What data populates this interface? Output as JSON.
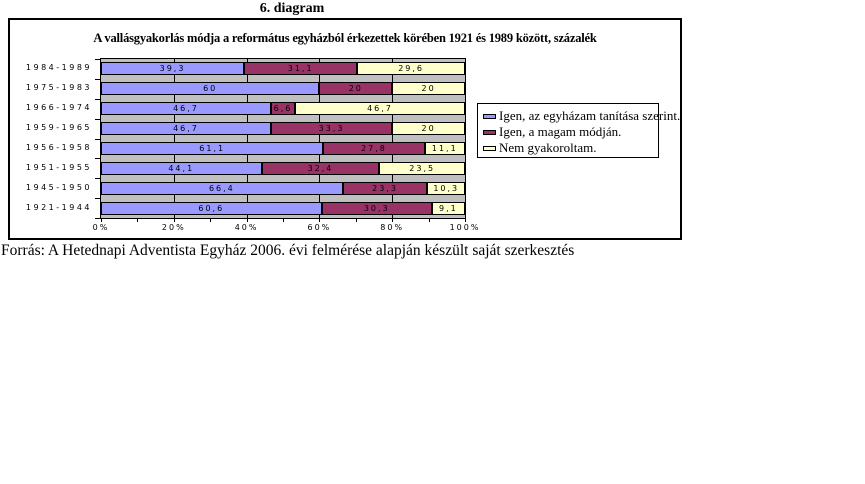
{
  "page": {
    "heading": "6. diagram",
    "source_note": "Forrás: A Hetednapi Adventista Egyház 2006. évi felmérése alapján készült saját szerkesztés"
  },
  "chart_data": {
    "type": "bar",
    "orientation": "horizontal",
    "stacked": true,
    "title": "A vallásgyakorlás módja a református egyházból érkezettek körében 1921 és 1989 között, százalék",
    "categories": [
      "1984-1989",
      "1975-1983",
      "1966-1974",
      "1959-1965",
      "1956-1958",
      "1951-1955",
      "1945-1950",
      "1921-1944"
    ],
    "series": [
      {
        "name": "Igen, az egyházam tanítása szerint.",
        "color": "#9999FF",
        "values": [
          39.3,
          60,
          46.7,
          46.7,
          61.1,
          44.1,
          66.4,
          60.6
        ],
        "labels": [
          "39,3",
          "60",
          "46,7",
          "46,7",
          "61,1",
          "44,1",
          "66,4",
          "60,6"
        ]
      },
      {
        "name": "Igen, a magam módján.",
        "color": "#993366",
        "values": [
          31.1,
          20,
          6.6,
          33.3,
          27.8,
          32.4,
          23.3,
          30.3
        ],
        "labels": [
          "31,1",
          "20",
          "6,6",
          "33,3",
          "27,8",
          "32,4",
          "23,3",
          "30,3"
        ]
      },
      {
        "name": "Nem gyakoroltam.",
        "color": "#FFFFCC",
        "values": [
          29.6,
          20,
          46.7,
          20,
          11.1,
          23.5,
          10.3,
          9.1
        ],
        "labels": [
          "29,6",
          "20",
          "46,7",
          "20",
          "11,1",
          "23,5",
          "10,3",
          "9,1"
        ]
      }
    ],
    "x_tick_labels": [
      "0%",
      "20%",
      "40%",
      "60%",
      "80%",
      "100%"
    ],
    "xlim": [
      0,
      100
    ],
    "x_minor_tick_step": 10,
    "gridline_step": 20,
    "plot_background": "#C0C0C0",
    "legend_position": "right-inside",
    "grid": "vertical-on"
  }
}
